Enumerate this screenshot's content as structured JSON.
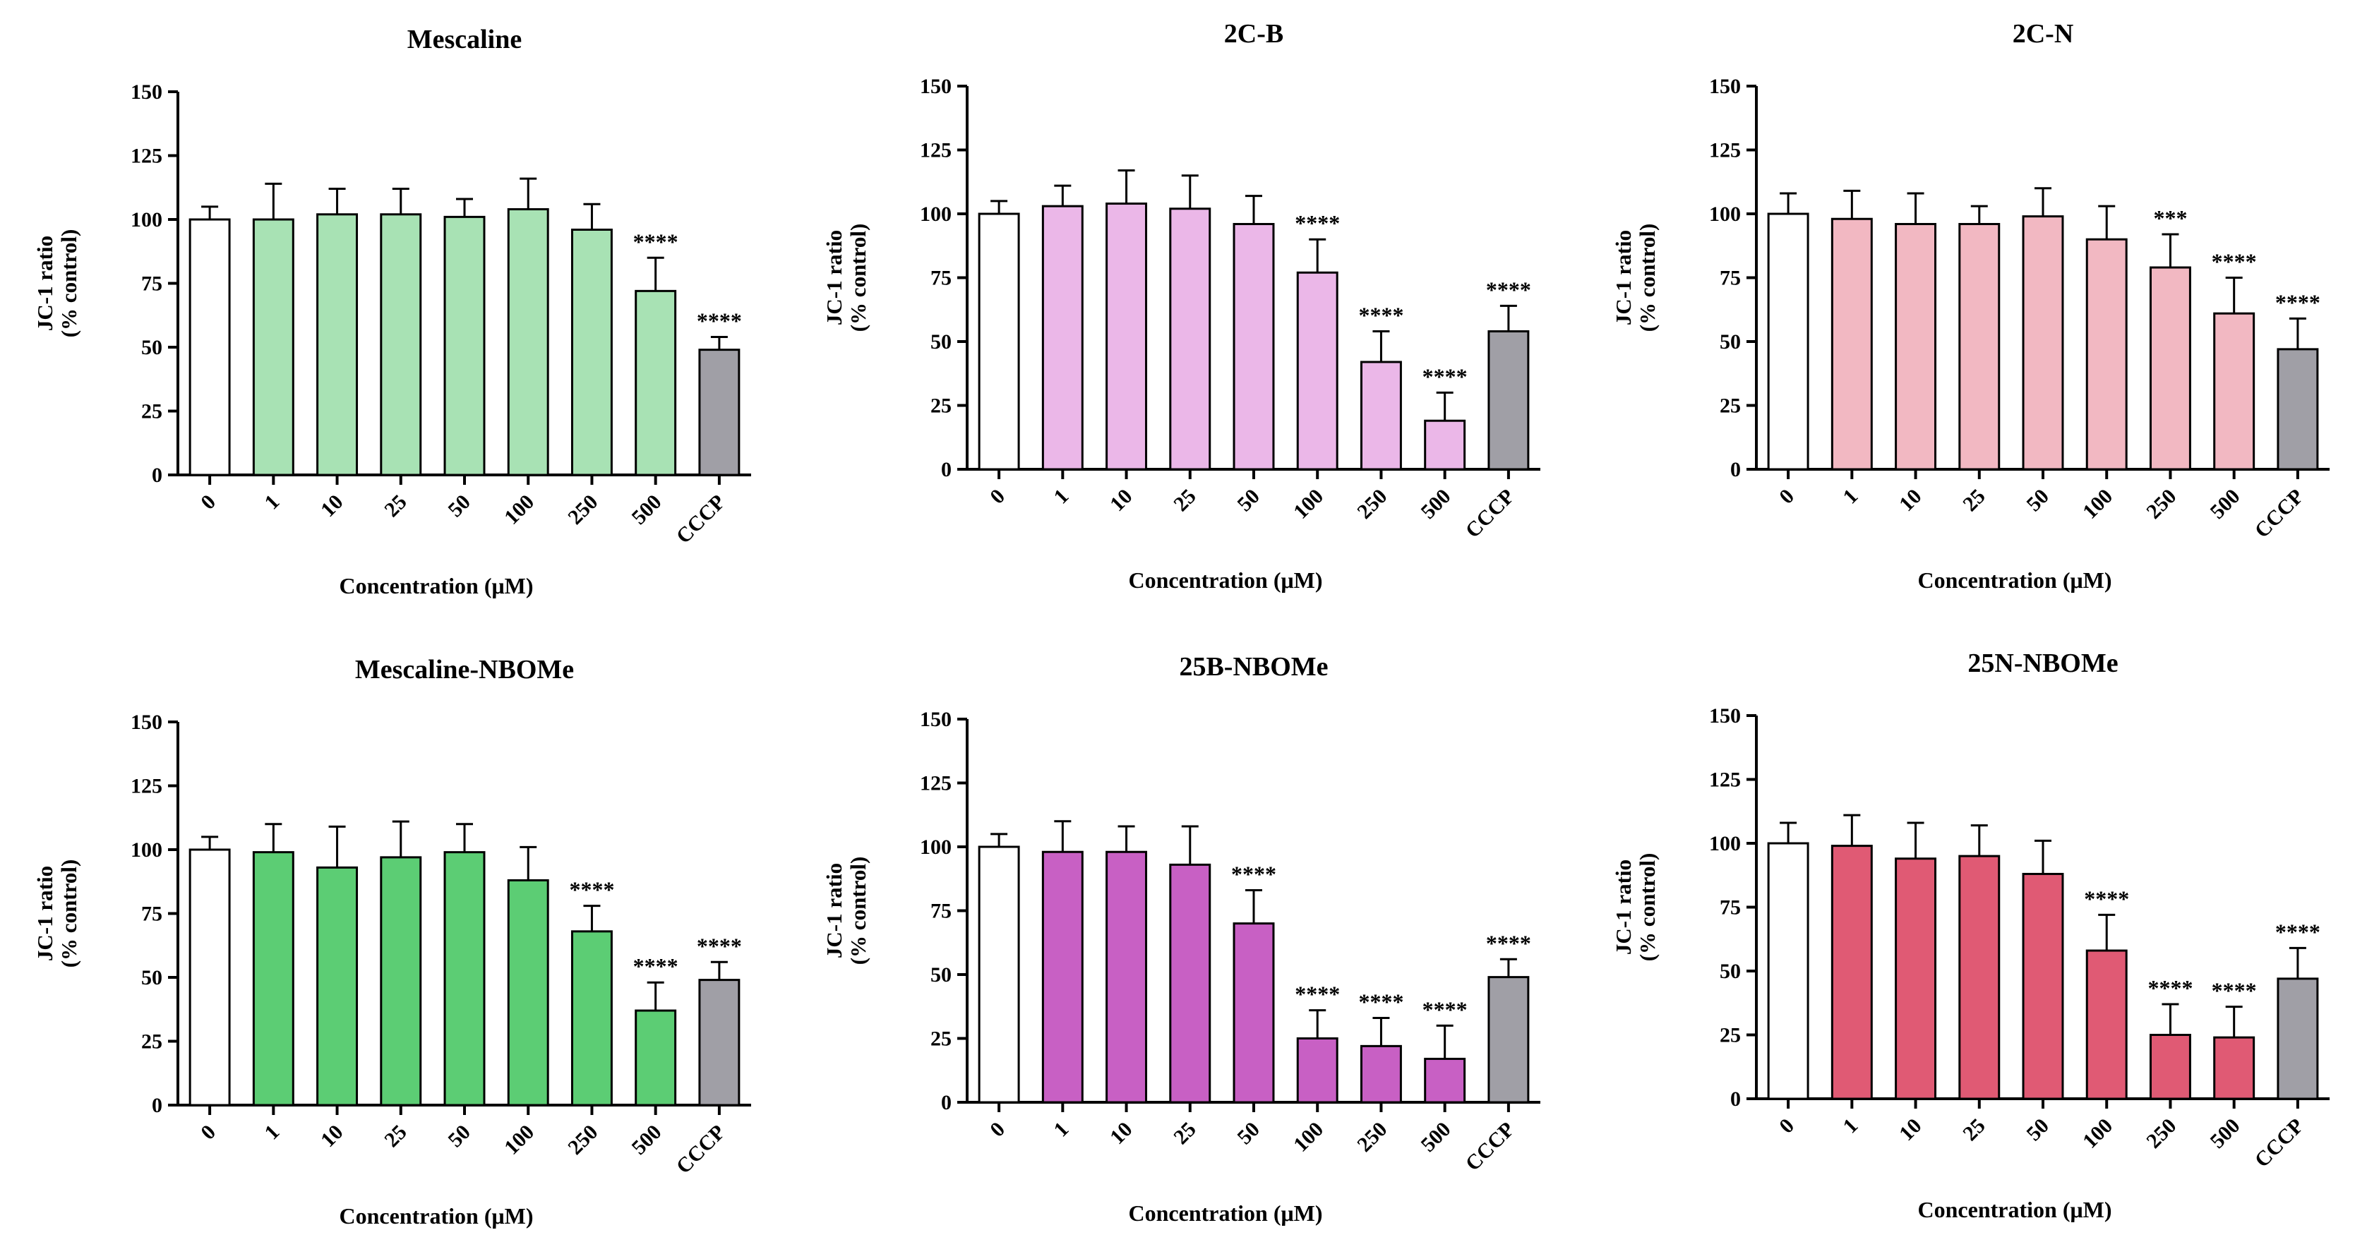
{
  "chart_data": [
    {
      "type": "bar",
      "title": "Mescaline",
      "categories": [
        "0",
        "1",
        "10",
        "25",
        "50",
        "100",
        "250",
        "500",
        "CCCP"
      ],
      "values": [
        100,
        100,
        102,
        102,
        101,
        104,
        96,
        72,
        49
      ],
      "errors": [
        5,
        14,
        10,
        10,
        7,
        12,
        10,
        13,
        5
      ],
      "significance": [
        "",
        "",
        "",
        "",
        "",
        "",
        "",
        "****",
        "****"
      ],
      "colors": [
        "#ffffff",
        "#a8e2b4",
        "#a8e2b4",
        "#a8e2b4",
        "#a8e2b4",
        "#a8e2b4",
        "#a8e2b4",
        "#a8e2b4",
        "#a09fa6"
      ],
      "ylabel": [
        "JC-1 ratio",
        "(% control)"
      ],
      "xlabel": "Concentration (μM)",
      "ylim": [
        0,
        150
      ],
      "yticks": [
        "0",
        "25",
        "50",
        "75",
        "100",
        "125",
        "150"
      ]
    },
    {
      "type": "bar",
      "title": "2C-B",
      "categories": [
        "0",
        "1",
        "10",
        "25",
        "50",
        "100",
        "250",
        "500",
        "CCCP"
      ],
      "values": [
        100,
        103,
        104,
        102,
        96,
        77,
        42,
        19,
        54
      ],
      "errors": [
        5,
        8,
        13,
        13,
        11,
        13,
        12,
        11,
        10
      ],
      "significance": [
        "",
        "",
        "",
        "",
        "",
        "****",
        "****",
        "****",
        "****"
      ],
      "colors": [
        "#ffffff",
        "#ebb7e8",
        "#ebb7e8",
        "#ebb7e8",
        "#ebb7e8",
        "#ebb7e8",
        "#ebb7e8",
        "#ebb7e8",
        "#a09fa6"
      ],
      "ylabel": [
        "JC-1 ratio",
        "(% control)"
      ],
      "xlabel": "Concentration (μM)",
      "ylim": [
        0,
        150
      ],
      "yticks": [
        "0",
        "25",
        "50",
        "75",
        "100",
        "125",
        "150"
      ]
    },
    {
      "type": "bar",
      "title": "2C-N",
      "categories": [
        "0",
        "1",
        "10",
        "25",
        "50",
        "100",
        "250",
        "500",
        "CCCP"
      ],
      "values": [
        100,
        98,
        96,
        96,
        99,
        90,
        79,
        61,
        47
      ],
      "errors": [
        8,
        11,
        12,
        7,
        11,
        13,
        13,
        14,
        12
      ],
      "significance": [
        "",
        "",
        "",
        "",
        "",
        "",
        "***",
        "****",
        "****"
      ],
      "colors": [
        "#ffffff",
        "#f2b8c2",
        "#f2b8c2",
        "#f2b8c2",
        "#f2b8c2",
        "#f2b8c2",
        "#f2b8c2",
        "#f2b8c2",
        "#a09fa6"
      ],
      "ylabel": [
        "JC-1 ratio",
        "(% control)"
      ],
      "xlabel": "Concentration (μM)",
      "ylim": [
        0,
        150
      ],
      "yticks": [
        "0",
        "25",
        "50",
        "75",
        "100",
        "125",
        "150"
      ]
    },
    {
      "type": "bar",
      "title": "Mescaline-NBOMe",
      "categories": [
        "0",
        "1",
        "10",
        "25",
        "50",
        "100",
        "250",
        "500",
        "CCCP"
      ],
      "values": [
        100,
        99,
        93,
        97,
        99,
        88,
        68,
        37,
        49
      ],
      "errors": [
        5,
        11,
        16,
        14,
        11,
        13,
        10,
        11,
        7
      ],
      "significance": [
        "",
        "",
        "",
        "",
        "",
        "",
        "****",
        "****",
        "****"
      ],
      "colors": [
        "#ffffff",
        "#5ccd74",
        "#5ccd74",
        "#5ccd74",
        "#5ccd74",
        "#5ccd74",
        "#5ccd74",
        "#5ccd74",
        "#a09fa6"
      ],
      "ylabel": [
        "JC-1 ratio",
        "(% control)"
      ],
      "xlabel": "Concentration (μM)",
      "ylim": [
        0,
        150
      ],
      "yticks": [
        "0",
        "25",
        "50",
        "75",
        "100",
        "125",
        "150"
      ]
    },
    {
      "type": "bar",
      "title": "25B-NBOMe",
      "categories": [
        "0",
        "1",
        "10",
        "25",
        "50",
        "100",
        "250",
        "500",
        "CCCP"
      ],
      "values": [
        100,
        98,
        98,
        93,
        70,
        25,
        22,
        17,
        49
      ],
      "errors": [
        5,
        12,
        10,
        15,
        13,
        11,
        11,
        13,
        7
      ],
      "significance": [
        "",
        "",
        "",
        "",
        "****",
        "****",
        "****",
        "****",
        "****"
      ],
      "colors": [
        "#ffffff",
        "#c860c4",
        "#c860c4",
        "#c860c4",
        "#c860c4",
        "#c860c4",
        "#c860c4",
        "#c860c4",
        "#a09fa6"
      ],
      "ylabel": [
        "JC-1 ratio",
        "(% control)"
      ],
      "xlabel": "Concentration (μM)",
      "ylim": [
        0,
        150
      ],
      "yticks": [
        "0",
        "25",
        "50",
        "75",
        "100",
        "125",
        "150"
      ]
    },
    {
      "type": "bar",
      "title": "25N-NBOMe",
      "categories": [
        "0",
        "1",
        "10",
        "25",
        "50",
        "100",
        "250",
        "500",
        "CCCP"
      ],
      "values": [
        100,
        99,
        94,
        95,
        88,
        58,
        25,
        24,
        47
      ],
      "errors": [
        8,
        12,
        14,
        12,
        13,
        14,
        12,
        12,
        12
      ],
      "significance": [
        "",
        "",
        "",
        "",
        "",
        "****",
        "****",
        "****",
        "****"
      ],
      "colors": [
        "#ffffff",
        "#e05a74",
        "#e05a74",
        "#e05a74",
        "#e05a74",
        "#e05a74",
        "#e05a74",
        "#e05a74",
        "#a09fa6"
      ],
      "ylabel": [
        "JC-1 ratio",
        "(% control)"
      ],
      "xlabel": "Concentration (μM)",
      "ylim": [
        0,
        150
      ],
      "yticks": [
        "0",
        "25",
        "50",
        "75",
        "100",
        "125",
        "150"
      ]
    }
  ]
}
